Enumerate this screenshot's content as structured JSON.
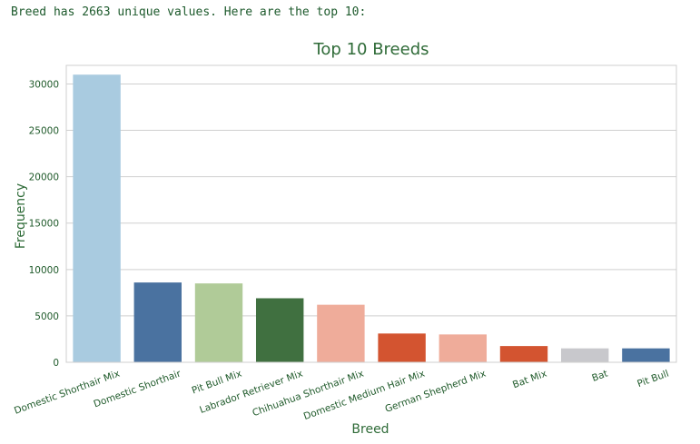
{
  "output_text": "Breed has 2663 unique values. Here are the top 10:",
  "chart_data": {
    "type": "bar",
    "title": "Top 10 Breeds",
    "xlabel": "Breed",
    "ylabel": "Frequency",
    "ylim": [
      0,
      32000
    ],
    "yticks": [
      0,
      5000,
      10000,
      15000,
      20000,
      25000,
      30000
    ],
    "grid": "horizontal",
    "categories": [
      "Domestic Shorthair Mix",
      "Domestic Shorthair",
      "Pit Bull Mix",
      "Labrador Retriever Mix",
      "Chihuahua Shorthair Mix",
      "Domestic Medium Hair Mix",
      "German Shepherd Mix",
      "Bat Mix",
      "Bat",
      "Pit Bull"
    ],
    "values": [
      31000,
      8600,
      8500,
      6900,
      6200,
      3100,
      3000,
      1750,
      1500,
      1500
    ],
    "colors": [
      "#a9cbe0",
      "#4a72a0",
      "#b0cb98",
      "#407040",
      "#efac9a",
      "#d35430",
      "#efac9a",
      "#d35430",
      "#c8c8cc",
      "#4a72a0"
    ]
  }
}
